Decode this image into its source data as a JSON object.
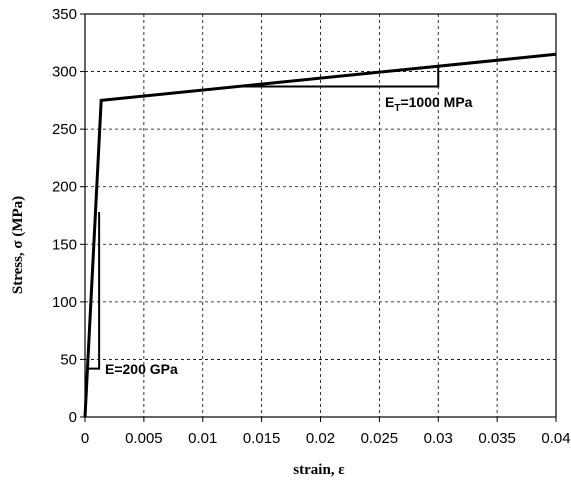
{
  "chart_data": {
    "type": "line",
    "title": "",
    "xlabel": "strain, ε",
    "ylabel": "Stress, σ (MPa)",
    "xlim": [
      0,
      0.04
    ],
    "ylim": [
      0,
      350
    ],
    "x_ticks": [
      "0",
      "0.005",
      "0.01",
      "0.015",
      "0.02",
      "0.025",
      "0.03",
      "0.035",
      "0.04"
    ],
    "y_ticks": [
      "0",
      "50",
      "100",
      "150",
      "200",
      "250",
      "300",
      "350"
    ],
    "grid": true,
    "series": [
      {
        "points": [
          {
            "x": 0,
            "y": 0
          },
          {
            "x": 0.001375,
            "y": 275
          },
          {
            "x": 0.04,
            "y": 315
          }
        ]
      }
    ],
    "annotations": [
      {
        "main": "E=200 GPa",
        "sub": "",
        "rest": "",
        "triangle": [
          [
            0.0002,
            42
          ],
          [
            0.0012,
            42
          ],
          [
            0.0012,
            178
          ]
        ]
      },
      {
        "main": "E",
        "sub": "T",
        "rest": "=1000 MPa",
        "triangle": [
          [
            0.013,
            287
          ],
          [
            0.03,
            287
          ],
          [
            0.03,
            304
          ]
        ]
      }
    ]
  }
}
